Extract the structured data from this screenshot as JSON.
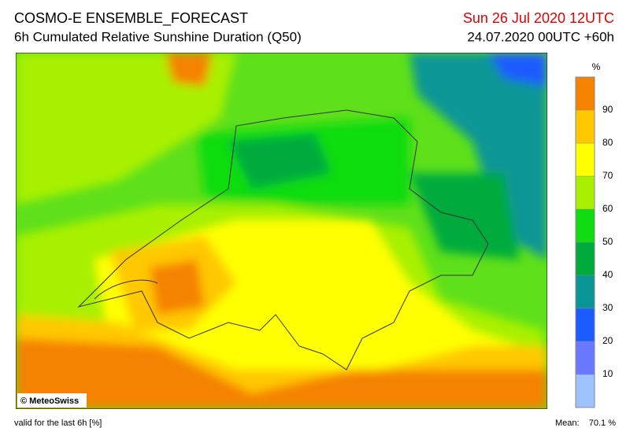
{
  "header": {
    "title": "COSMO-E ENSEMBLE_FORECAST",
    "subtitle": "6h Cumulated Relative Sunshine Duration (Q50)",
    "valid_time": "Sun 26 Jul 2020 12UTC",
    "run": "24.07.2020 00UTC +60h"
  },
  "colorbar": {
    "unit": "%",
    "lim": [
      0,
      100
    ],
    "ticks": [
      10,
      20,
      30,
      40,
      50,
      60,
      70,
      80,
      90
    ],
    "colors": [
      "#9cc2ff",
      "#6a78ff",
      "#1a5cff",
      "#0a9696",
      "#00aa3c",
      "#10dc10",
      "#a8f000",
      "#ffff00",
      "#ffc800",
      "#f58200"
    ]
  },
  "credit": "© MeteoSwiss",
  "footer": {
    "note": "valid for the last 6h [%]",
    "mean_label": "Mean:",
    "mean": "70.1 %"
  }
}
